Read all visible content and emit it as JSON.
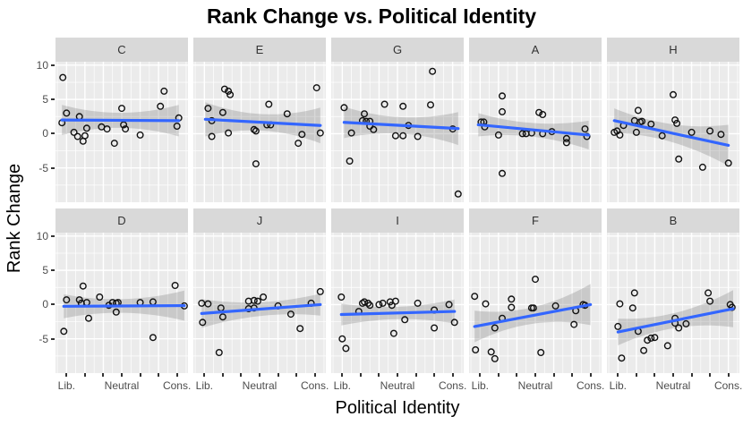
{
  "title": "Rank Change vs. Political Identity",
  "axes": {
    "x_title": "Political Identity",
    "y_title": "Rank Change",
    "y_ticks": [
      {
        "y": 10,
        "text": "10"
      },
      {
        "y": 5,
        "text": "5"
      },
      {
        "y": 0,
        "text": "0"
      },
      {
        "y": -5,
        "text": "-5"
      }
    ],
    "x_tick_positions": [
      1,
      2,
      3,
      4,
      5,
      6,
      7
    ],
    "x_tick_labels": [
      {
        "x": 1,
        "text": "Lib."
      },
      {
        "x": 4,
        "text": "Neutral"
      },
      {
        "x": 7,
        "text": "Cons."
      }
    ]
  },
  "colors": {
    "panel_bg": "#EBEBEB",
    "strip_bg": "#D9D9D9",
    "grid": "#FFFFFF",
    "trend_line": "#3366FF",
    "confidence_band": "rgba(115,115,115,0.28)",
    "point_stroke": "#111111",
    "tick_text": "#4D4D4D",
    "title_text": "#000000"
  },
  "chart_data": {
    "type": "scatter",
    "title": "Rank Change vs. Political Identity",
    "xlabel": "Political Identity",
    "ylabel": "Rank Change",
    "x_range": [
      0.4,
      7.6
    ],
    "y_range": [
      -10,
      10.5
    ],
    "x_axis_mapping": {
      "1": "Lib.",
      "4": "Neutral",
      "7": "Cons."
    },
    "grid": "on",
    "facet_layout": [
      [
        "C",
        "E",
        "G",
        "A",
        "H"
      ],
      [
        "D",
        "J",
        "I",
        "F",
        "B"
      ]
    ],
    "facets": [
      {
        "label": "C",
        "trend": {
          "x1": 0.75,
          "y1": 2.0,
          "x2": 7.1,
          "y2": 1.9
        },
        "band": {
          "h1": 2.2,
          "hm": 1.1,
          "h2": 2.3
        },
        "points": [
          [
            0.8,
            8.2
          ],
          [
            6.3,
            6.2
          ],
          [
            1.0,
            3.0
          ],
          [
            6.1,
            4.0
          ],
          [
            4.0,
            3.7
          ],
          [
            1.7,
            2.5
          ],
          [
            0.75,
            1.6
          ],
          [
            7.1,
            2.3
          ],
          [
            2.1,
            0.8
          ],
          [
            2.9,
            1.0
          ],
          [
            3.2,
            0.7
          ],
          [
            4.1,
            1.3
          ],
          [
            4.2,
            0.7
          ],
          [
            1.4,
            0.2
          ],
          [
            1.6,
            -0.4
          ],
          [
            2.0,
            -0.3
          ],
          [
            5.0,
            -0.2
          ],
          [
            1.9,
            -1.1
          ],
          [
            3.6,
            -1.4
          ],
          [
            7.0,
            1.1
          ]
        ]
      },
      {
        "label": "E",
        "trend": {
          "x1": 1.05,
          "y1": 2.1,
          "x2": 7.3,
          "y2": 1.2
        },
        "band": {
          "h1": 2.5,
          "hm": 1.2,
          "h2": 2.6
        },
        "points": [
          [
            2.1,
            6.5
          ],
          [
            2.3,
            6.2
          ],
          [
            2.4,
            5.7
          ],
          [
            7.1,
            6.7
          ],
          [
            4.5,
            4.3
          ],
          [
            1.2,
            3.7
          ],
          [
            2.0,
            3.1
          ],
          [
            5.5,
            2.9
          ],
          [
            1.4,
            1.9
          ],
          [
            4.4,
            1.3
          ],
          [
            4.6,
            1.3
          ],
          [
            3.7,
            0.6
          ],
          [
            3.8,
            0.4
          ],
          [
            2.3,
            0.1
          ],
          [
            1.4,
            -0.4
          ],
          [
            6.3,
            -0.1
          ],
          [
            7.3,
            0.1
          ],
          [
            6.1,
            -1.4
          ],
          [
            3.8,
            -4.4
          ]
        ]
      },
      {
        "label": "G",
        "trend": {
          "x1": 1.1,
          "y1": 1.65,
          "x2": 7.3,
          "y2": 0.75
        },
        "band": {
          "h1": 2.3,
          "hm": 1.2,
          "h2": 2.4
        },
        "points": [
          [
            5.9,
            9.1
          ],
          [
            1.1,
            3.8
          ],
          [
            3.3,
            4.3
          ],
          [
            4.3,
            4.0
          ],
          [
            5.8,
            4.2
          ],
          [
            2.2,
            2.9
          ],
          [
            2.1,
            1.9
          ],
          [
            2.3,
            1.8
          ],
          [
            2.5,
            1.8
          ],
          [
            2.5,
            1.1
          ],
          [
            2.7,
            0.6
          ],
          [
            1.5,
            0.1
          ],
          [
            4.6,
            1.2
          ],
          [
            3.9,
            -0.3
          ],
          [
            4.3,
            -0.3
          ],
          [
            5.1,
            -0.4
          ],
          [
            7.0,
            0.7
          ],
          [
            1.4,
            -4.0
          ],
          [
            7.3,
            -8.8
          ]
        ]
      },
      {
        "label": "A",
        "trend": {
          "x1": 0.9,
          "y1": 1.3,
          "x2": 6.9,
          "y2": -0.2
        },
        "band": {
          "h1": 1.7,
          "hm": 1.0,
          "h2": 2.1
        },
        "points": [
          [
            2.2,
            5.5
          ],
          [
            2.2,
            3.2
          ],
          [
            4.2,
            3.1
          ],
          [
            4.4,
            2.8
          ],
          [
            1.05,
            1.7
          ],
          [
            1.2,
            1.7
          ],
          [
            1.25,
            1.0
          ],
          [
            2.0,
            -0.2
          ],
          [
            3.3,
            0.0
          ],
          [
            3.5,
            0.0
          ],
          [
            3.8,
            0.1
          ],
          [
            4.4,
            0.0
          ],
          [
            4.9,
            0.3
          ],
          [
            5.7,
            -0.7
          ],
          [
            5.7,
            -1.3
          ],
          [
            6.7,
            0.7
          ],
          [
            6.8,
            -0.4
          ],
          [
            2.2,
            -5.8
          ]
        ]
      },
      {
        "label": "H",
        "trend": {
          "x1": 0.8,
          "y1": 1.9,
          "x2": 7.0,
          "y2": -1.7
        },
        "band": {
          "h1": 1.8,
          "hm": 1.3,
          "h2": 3.0
        },
        "points": [
          [
            4.0,
            5.7
          ],
          [
            2.1,
            3.4
          ],
          [
            1.9,
            1.9
          ],
          [
            2.2,
            1.7
          ],
          [
            2.3,
            1.8
          ],
          [
            1.3,
            1.2
          ],
          [
            2.8,
            1.4
          ],
          [
            4.1,
            2.0
          ],
          [
            4.2,
            1.5
          ],
          [
            0.95,
            0.4
          ],
          [
            0.8,
            0.2
          ],
          [
            1.1,
            -0.2
          ],
          [
            2.0,
            0.2
          ],
          [
            3.4,
            -0.3
          ],
          [
            5.0,
            0.2
          ],
          [
            6.0,
            0.4
          ],
          [
            6.6,
            -0.1
          ],
          [
            4.3,
            -3.7
          ],
          [
            5.6,
            -4.9
          ],
          [
            7.0,
            -4.3
          ]
        ]
      },
      {
        "label": "D",
        "trend": {
          "x1": 0.85,
          "y1": -0.25,
          "x2": 7.4,
          "y2": -0.15
        },
        "band": {
          "h1": 1.75,
          "hm": 1.0,
          "h2": 2.2
        },
        "points": [
          [
            1.0,
            0.7
          ],
          [
            1.9,
            2.7
          ],
          [
            1.7,
            0.7
          ],
          [
            1.8,
            0.2
          ],
          [
            2.1,
            0.3
          ],
          [
            2.8,
            1.1
          ],
          [
            2.2,
            -2.0
          ],
          [
            0.85,
            -3.9
          ],
          [
            3.3,
            -0.1
          ],
          [
            3.5,
            0.3
          ],
          [
            3.7,
            0.2
          ],
          [
            3.8,
            0.3
          ],
          [
            3.7,
            -1.1
          ],
          [
            5.0,
            0.3
          ],
          [
            5.7,
            0.4
          ],
          [
            5.7,
            -4.8
          ],
          [
            6.9,
            2.8
          ],
          [
            7.4,
            -0.2
          ]
        ]
      },
      {
        "label": "J",
        "trend": {
          "x1": 0.85,
          "y1": -1.3,
          "x2": 7.3,
          "y2": 0.0
        },
        "band": {
          "h1": 2.1,
          "hm": 1.0,
          "h2": 1.6
        },
        "points": [
          [
            0.85,
            0.2
          ],
          [
            1.2,
            0.1
          ],
          [
            0.9,
            -2.6
          ],
          [
            1.9,
            -0.5
          ],
          [
            2.0,
            -1.8
          ],
          [
            1.8,
            -7.0
          ],
          [
            3.4,
            0.5
          ],
          [
            3.7,
            0.6
          ],
          [
            3.9,
            0.5
          ],
          [
            3.4,
            -0.6
          ],
          [
            3.7,
            -0.5
          ],
          [
            4.2,
            1.1
          ],
          [
            5.0,
            -0.2
          ],
          [
            5.7,
            -1.4
          ],
          [
            6.2,
            -3.5
          ],
          [
            6.8,
            0.2
          ],
          [
            7.3,
            1.9
          ]
        ]
      },
      {
        "label": "I",
        "trend": {
          "x1": 0.95,
          "y1": -1.45,
          "x2": 7.1,
          "y2": -1.0
        },
        "band": {
          "h1": 1.6,
          "hm": 0.9,
          "h2": 1.75
        },
        "points": [
          [
            0.95,
            1.1
          ],
          [
            1.9,
            -1.0
          ],
          [
            2.1,
            0.2
          ],
          [
            2.2,
            0.4
          ],
          [
            2.4,
            0.2
          ],
          [
            2.5,
            -0.1
          ],
          [
            3.0,
            0.0
          ],
          [
            3.2,
            0.2
          ],
          [
            3.6,
            0.4
          ],
          [
            3.7,
            -0.1
          ],
          [
            3.9,
            0.5
          ],
          [
            4.4,
            -2.2
          ],
          [
            3.8,
            -4.2
          ],
          [
            5.1,
            0.2
          ],
          [
            6.0,
            -0.8
          ],
          [
            6.0,
            -3.4
          ],
          [
            6.8,
            0.0
          ],
          [
            7.1,
            -2.6
          ],
          [
            1.0,
            -5.0
          ],
          [
            1.2,
            -6.4
          ]
        ]
      },
      {
        "label": "F",
        "trend": {
          "x1": 0.7,
          "y1": -3.2,
          "x2": 7.0,
          "y2": 0.0
        },
        "band": {
          "h1": 2.3,
          "hm": 1.2,
          "h2": 3.0
        },
        "points": [
          [
            4.0,
            3.7
          ],
          [
            0.7,
            1.2
          ],
          [
            1.3,
            0.1
          ],
          [
            2.7,
            0.8
          ],
          [
            2.7,
            -0.4
          ],
          [
            3.8,
            -0.5
          ],
          [
            3.9,
            -0.5
          ],
          [
            5.1,
            -0.2
          ],
          [
            6.6,
            0.0
          ],
          [
            6.7,
            -0.1
          ],
          [
            6.2,
            -0.9
          ],
          [
            2.2,
            -2.0
          ],
          [
            1.8,
            -3.4
          ],
          [
            6.1,
            -2.9
          ],
          [
            0.75,
            -6.6
          ],
          [
            1.6,
            -6.9
          ],
          [
            1.8,
            -7.9
          ],
          [
            4.3,
            -7.0
          ]
        ]
      },
      {
        "label": "B",
        "trend": {
          "x1": 1.0,
          "y1": -4.0,
          "x2": 7.26,
          "y2": -0.6
        },
        "band": {
          "h1": 1.95,
          "hm": 1.1,
          "h2": 2.7
        },
        "points": [
          [
            1.9,
            1.7
          ],
          [
            1.1,
            0.1
          ],
          [
            1.8,
            -0.5
          ],
          [
            5.9,
            1.7
          ],
          [
            6.0,
            0.5
          ],
          [
            1.0,
            -3.2
          ],
          [
            2.1,
            -3.9
          ],
          [
            4.1,
            -2.0
          ],
          [
            4.1,
            -2.7
          ],
          [
            4.3,
            -3.4
          ],
          [
            4.7,
            -2.8
          ],
          [
            2.6,
            -5.2
          ],
          [
            2.8,
            -4.9
          ],
          [
            3.0,
            -4.8
          ],
          [
            2.4,
            -6.7
          ],
          [
            3.7,
            -6.0
          ],
          [
            1.2,
            -7.8
          ],
          [
            7.1,
            0.0
          ],
          [
            7.2,
            -0.4
          ]
        ]
      }
    ]
  }
}
